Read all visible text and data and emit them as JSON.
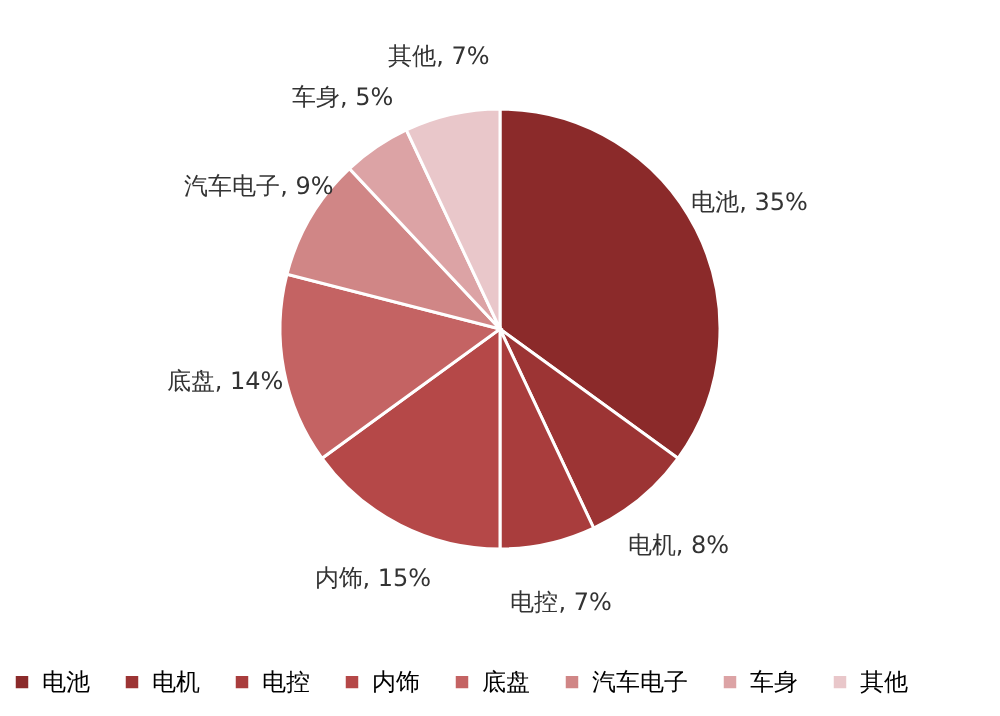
{
  "chart_data": {
    "type": "pie",
    "categories": [
      "电池",
      "电机",
      "电控",
      "内饰",
      "底盘",
      "汽车电子",
      "车身",
      "其他"
    ],
    "values": [
      35,
      8,
      7,
      15,
      14,
      9,
      5,
      7
    ],
    "value_labels": [
      "电池, 35%",
      "电机, 8%",
      "电控, 7%",
      "内饰, 15%",
      "底盘, 14%",
      "汽车电子, 9%",
      "车身, 5%",
      "其他, 7%"
    ],
    "colors": [
      "#8b2a2a",
      "#9c3434",
      "#a93d3d",
      "#b54848",
      "#c46363",
      "#d08686",
      "#dca3a5",
      "#e9c7ca"
    ],
    "legend": "bottom"
  }
}
